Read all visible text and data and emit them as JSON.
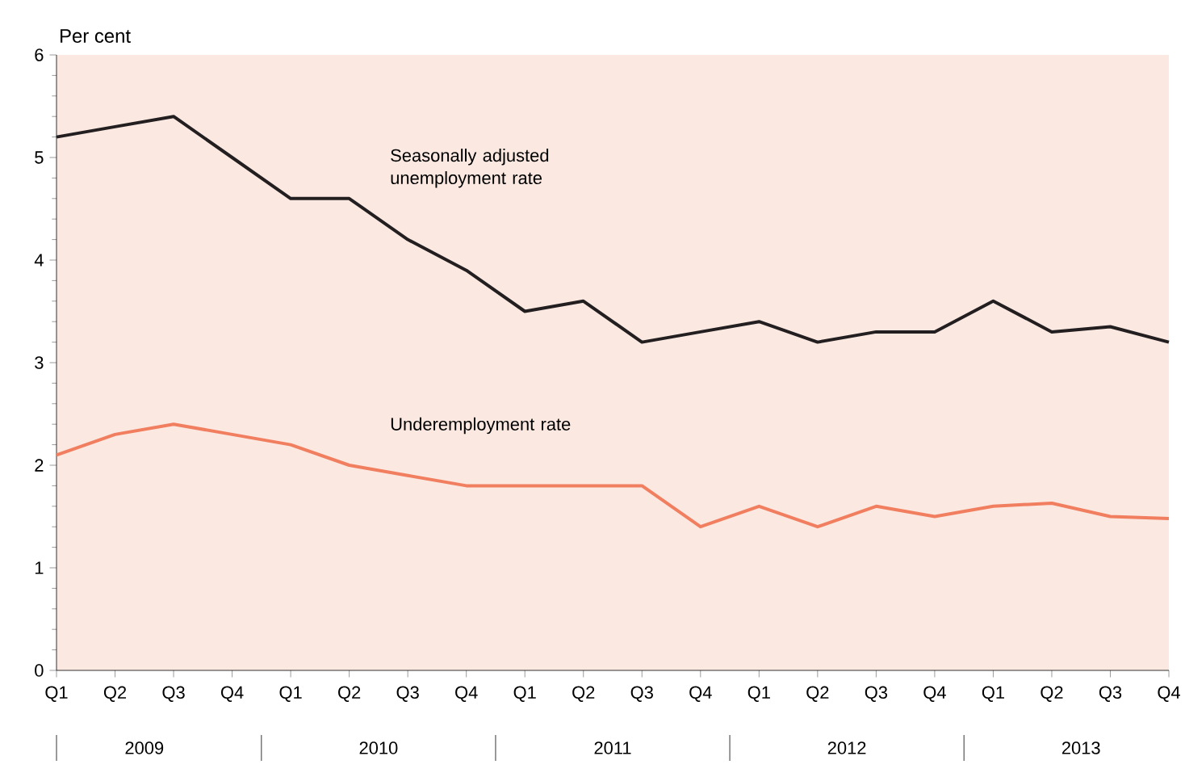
{
  "chart_data": {
    "type": "line",
    "ylabel": "Per cent",
    "categories": [
      "Q1",
      "Q2",
      "Q3",
      "Q4",
      "Q1",
      "Q2",
      "Q3",
      "Q4",
      "Q1",
      "Q2",
      "Q3",
      "Q4",
      "Q1",
      "Q2",
      "Q3",
      "Q4",
      "Q1",
      "Q2",
      "Q3",
      "Q4"
    ],
    "series": [
      {
        "name": "Seasonally adjusted unemployment rate",
        "color": "#231f20",
        "values": [
          5.2,
          5.3,
          5.4,
          5.0,
          4.6,
          4.6,
          4.2,
          3.9,
          3.5,
          3.6,
          3.2,
          3.3,
          3.4,
          3.2,
          3.3,
          3.3,
          3.6,
          3.3,
          3.35,
          3.2
        ]
      },
      {
        "name": "Underemployment rate",
        "color": "#f07e5f",
        "values": [
          2.1,
          2.3,
          2.4,
          2.3,
          2.2,
          2.0,
          1.9,
          1.8,
          1.8,
          1.8,
          1.8,
          1.4,
          1.6,
          1.4,
          1.6,
          1.5,
          1.6,
          1.63,
          1.5,
          1.48
        ]
      }
    ],
    "ylim": [
      0,
      6
    ],
    "yticks": [
      0,
      1,
      2,
      3,
      4,
      5,
      6
    ],
    "annotations": [
      "2009",
      "2010",
      "2011",
      "2012",
      "2013"
    ],
    "grid": false,
    "legend": false,
    "marker": "none",
    "line_style": "solid"
  }
}
